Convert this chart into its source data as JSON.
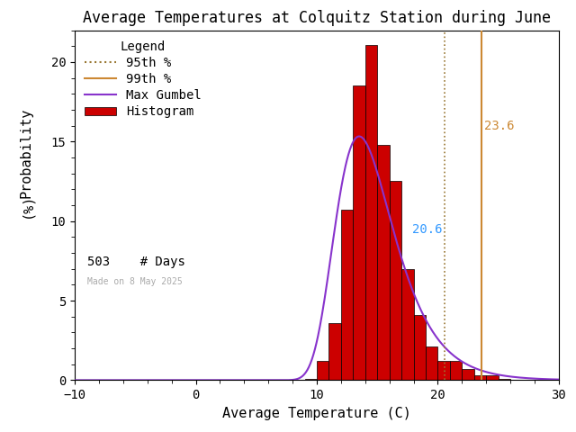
{
  "title": "Average Temperatures at Colquitz Station during June",
  "xlabel": "Average Temperature (C)",
  "ylabel_line1": "Probability",
  "ylabel_line2": "(%)",
  "xlim": [
    -10,
    30
  ],
  "ylim": [
    0,
    22
  ],
  "xticks": [
    -10,
    0,
    10,
    20,
    30
  ],
  "yticks": [
    0,
    5,
    10,
    15,
    20
  ],
  "bar_color": "#cc0000",
  "bar_edge_color": "#000000",
  "gumbel_color": "#8833cc",
  "p95_line_color": "#997733",
  "p95_label_color": "#3399ff",
  "p99_line_color": "#cc8833",
  "p99_label_color": "#cc8833",
  "p95_value": 20.6,
  "p99_value": 23.6,
  "n_days": 503,
  "watermark": "Made on 8 May 2025",
  "bin_edges": [
    8,
    9,
    10,
    11,
    12,
    13,
    14,
    15,
    16,
    17,
    18,
    19,
    20,
    21,
    22,
    23,
    24,
    25,
    26,
    27,
    28,
    29
  ],
  "bin_heights": [
    0.0,
    0.1,
    1.2,
    3.6,
    10.7,
    18.5,
    21.1,
    14.8,
    12.5,
    7.0,
    4.1,
    2.1,
    1.2,
    1.2,
    0.7,
    0.3,
    0.3,
    0.1,
    0.0,
    0.0,
    0.0
  ],
  "bin_width": 1.0,
  "gumbel_mu": 13.5,
  "gumbel_beta": 2.4,
  "background_color": "#ffffff",
  "title_fontsize": 12,
  "axis_fontsize": 11,
  "tick_fontsize": 10,
  "legend_fontsize": 10
}
